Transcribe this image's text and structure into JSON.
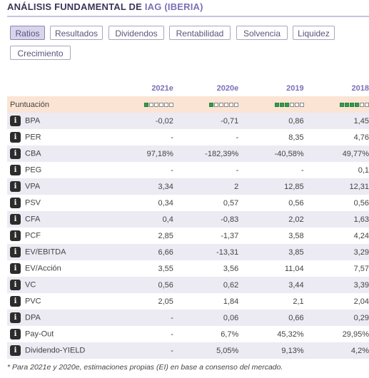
{
  "header": {
    "title_prefix": "ANÁLISIS FUNDAMENTAL DE ",
    "title_company": "IAG (IBERIA)"
  },
  "tabs": [
    {
      "label": "Ratios",
      "active": true
    },
    {
      "label": "Resultados",
      "active": false
    },
    {
      "label": "Dividendos",
      "active": false
    },
    {
      "label": "Rentabilidad",
      "active": false
    },
    {
      "label": "Solvencia",
      "active": false
    },
    {
      "label": "Liquidez",
      "active": false
    },
    {
      "label": "Crecimiento",
      "active": false
    }
  ],
  "table": {
    "years": [
      "2021e",
      "2020e",
      "2019",
      "2018"
    ],
    "score": {
      "label": "Puntuación",
      "values": [
        1,
        1,
        3,
        4
      ],
      "max": 6,
      "color_on": "#2f9e4a"
    },
    "rows": [
      {
        "label": "BPA",
        "values": [
          "-0,02",
          "-0,71",
          "0,86",
          "1,45"
        ]
      },
      {
        "label": "PER",
        "values": [
          "-",
          "-",
          "8,35",
          "4,76"
        ]
      },
      {
        "label": "CBA",
        "values": [
          "97,18%",
          "-182,39%",
          "-40,58%",
          "49,77%"
        ]
      },
      {
        "label": "PEG",
        "values": [
          "-",
          "-",
          "-",
          "0,1"
        ]
      },
      {
        "label": "VPA",
        "values": [
          "3,34",
          "2",
          "12,85",
          "12,31"
        ]
      },
      {
        "label": "PSV",
        "values": [
          "0,34",
          "0,57",
          "0,56",
          "0,56"
        ]
      },
      {
        "label": "CFA",
        "values": [
          "0,4",
          "-0,83",
          "2,02",
          "1,63"
        ]
      },
      {
        "label": "PCF",
        "values": [
          "2,85",
          "-1,37",
          "3,58",
          "4,24"
        ]
      },
      {
        "label": "EV/EBITDA",
        "values": [
          "6,66",
          "-13,31",
          "3,85",
          "3,29"
        ]
      },
      {
        "label": "EV/Acción",
        "values": [
          "3,55",
          "3,56",
          "11,04",
          "7,57"
        ]
      },
      {
        "label": "VC",
        "values": [
          "0,56",
          "0,62",
          "3,44",
          "3,39"
        ]
      },
      {
        "label": "PVC",
        "values": [
          "2,05",
          "1,84",
          "2,1",
          "2,04"
        ]
      },
      {
        "label": "DPA",
        "values": [
          "-",
          "0,06",
          "0,66",
          "0,29"
        ]
      },
      {
        "label": "Pay-Out",
        "values": [
          "-",
          "6,7%",
          "45,32%",
          "29,95%"
        ]
      },
      {
        "label": "Dividendo-YIELD",
        "values": [
          "-",
          "5,05%",
          "9,13%",
          "4,2%"
        ]
      }
    ]
  },
  "info_icon_glyph": "i",
  "footnote": "* Para 2021e y 2020e, estimaciones propias (EI) en base a consenso del mercado."
}
